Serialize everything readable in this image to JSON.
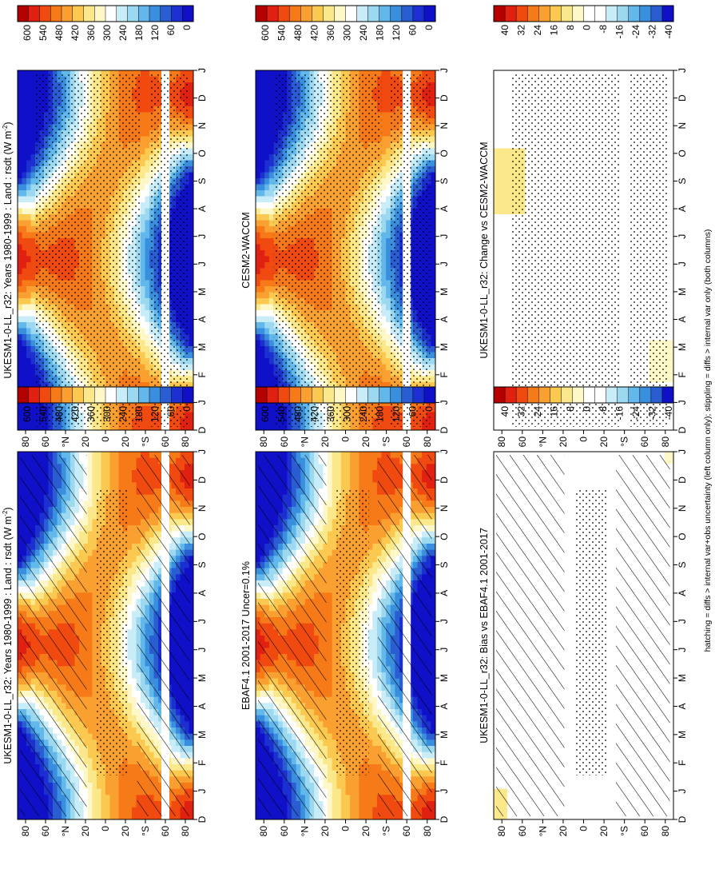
{
  "footnote": "hatching = diffs > internal var+obs uncertainty (left column only); stippling = diffs > internal var only (both columns)",
  "lat_labels": [
    "80",
    "60",
    "°N",
    "20",
    "0",
    "20",
    "°S",
    "60",
    "80"
  ],
  "lat_values": [
    80,
    60,
    40,
    20,
    0,
    -20,
    -40,
    -60,
    -80
  ],
  "month_labels": [
    "D",
    "J",
    "F",
    "M",
    "A",
    "M",
    "J",
    "J",
    "A",
    "S",
    "O",
    "N",
    "D",
    "J"
  ],
  "abs_scale": {
    "labels": [
      "600",
      "540",
      "480",
      "420",
      "360",
      "300",
      "240",
      "180",
      "120",
      "60",
      "0"
    ],
    "colors": [
      "#b50000",
      "#e02010",
      "#f04a10",
      "#f77a18",
      "#faa030",
      "#fbc850",
      "#fbe88a",
      "#fef8c8",
      "#ffffff",
      "#c8ecf8",
      "#9cd8f0",
      "#62b8ea",
      "#3a8ede",
      "#2a5cd2",
      "#1c2fd0",
      "#1010c8"
    ]
  },
  "diff_scale": {
    "labels": [
      "40",
      "32",
      "24",
      "16",
      "8",
      "0",
      "-8",
      "-16",
      "-24",
      "-32",
      "-40"
    ],
    "colors": [
      "#b50000",
      "#e02010",
      "#f04a10",
      "#f77a18",
      "#faa030",
      "#fbc850",
      "#fbe88a",
      "#fef8c8",
      "#ffffff",
      "#ffffff",
      "#c8ecf8",
      "#9cd8f0",
      "#62b8ea",
      "#3a8ede",
      "#2a5cd2",
      "#1010c8"
    ]
  },
  "panels": [
    {
      "id": "top-left",
      "title": "UKESM1-0-LL_r32: Years 1980-1999 : Land : rsdt (W m",
      "title_sup": "-2",
      "title_end": ")",
      "kind": "abs",
      "hatch": true,
      "stipple": true
    },
    {
      "id": "top-right",
      "title": "UKESM1-0-LL_r32: Years 1980-1999 : Land : rsdt (W m",
      "title_sup": "-2",
      "title_end": ")",
      "kind": "abs",
      "hatch": false,
      "stipple": true
    },
    {
      "id": "mid-left",
      "title": "EBAF4.1 2001-2017 Uncer=0.1%",
      "title_sup": "",
      "title_end": "",
      "kind": "abs",
      "hatch": true,
      "stipple": true
    },
    {
      "id": "mid-right",
      "title": "CESM2-WACCM",
      "title_sup": "",
      "title_end": "",
      "kind": "abs",
      "hatch": false,
      "stipple": true
    },
    {
      "id": "bot-left",
      "title": "UKESM1-0-LL_r32: Bias vs EBAF4.1 2001-2017",
      "title_sup": "",
      "title_end": "",
      "kind": "diff",
      "hatch": true,
      "stipple": true
    },
    {
      "id": "bot-right",
      "title": "UKESM1-0-LL_r32: Change vs CESM2-WACCM",
      "title_sup": "",
      "title_end": "",
      "kind": "diff",
      "hatch": false,
      "stipple": true
    }
  ],
  "chart_data": {
    "type": "heatmap",
    "variable": "rsdt",
    "units": "W m-2",
    "x": [
      "D",
      "J",
      "F",
      "M",
      "A",
      "M",
      "J",
      "J",
      "A",
      "S",
      "O",
      "N",
      "D",
      "J"
    ],
    "y": [
      80,
      60,
      40,
      20,
      0,
      -20,
      -40,
      -60,
      -80
    ],
    "abs_range": [
      0,
      600
    ],
    "diff_range": [
      -40,
      40
    ],
    "masked_latitude": -60
  }
}
